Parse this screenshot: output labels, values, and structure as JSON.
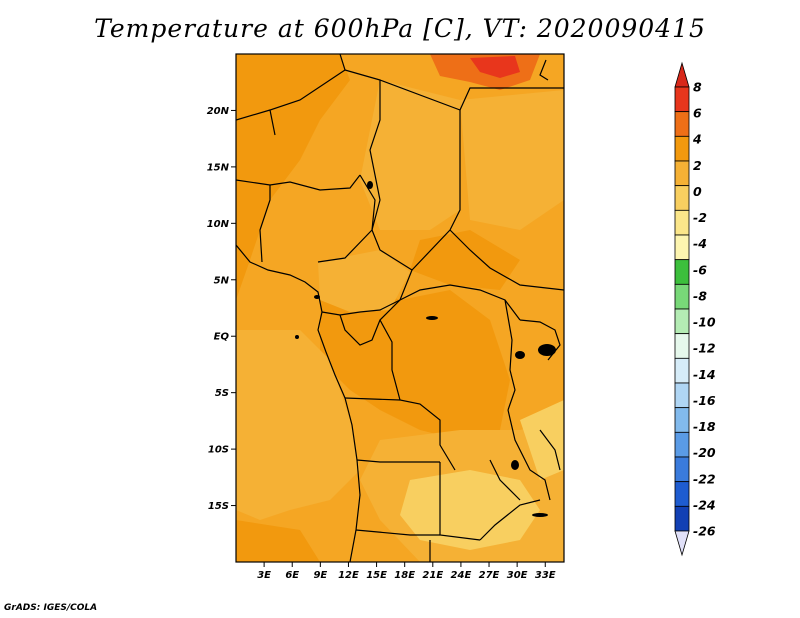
{
  "title": "Temperature at 600hPa [C], VT: 2020090415",
  "credit": "GrADS: IGES/COLA",
  "map": {
    "lon_range": [
      0,
      35
    ],
    "lat_range": [
      -20,
      25
    ],
    "lat_labels": [
      "20N",
      "15N",
      "10N",
      "5N",
      "EQ",
      "5S",
      "10S",
      "15S"
    ],
    "lat_values": [
      20,
      15,
      10,
      5,
      0,
      -5,
      -10,
      -15
    ],
    "lon_labels": [
      "3E",
      "6E",
      "9E",
      "12E",
      "15E",
      "18E",
      "21E",
      "24E",
      "27E",
      "30E",
      "33E"
    ],
    "lon_values": [
      3,
      6,
      9,
      12,
      15,
      18,
      21,
      24,
      27,
      30,
      33
    ],
    "dominant_field_color": "#f5a623"
  },
  "colorbar": {
    "labels": [
      "8",
      "6",
      "4",
      "2",
      "0",
      "-2",
      "-4",
      "-6",
      "-8",
      "-10",
      "-12",
      "-14",
      "-16",
      "-18",
      "-20",
      "-22",
      "-24",
      "-26"
    ],
    "colors": [
      "#e8361c",
      "#ee6f17",
      "#f2990e",
      "#f5b135",
      "#f8cf60",
      "#fbe68a",
      "#fdf5b0",
      "#3cbf3c",
      "#78d878",
      "#b4ecb4",
      "#e6f8ec",
      "#d6ecf8",
      "#b0d6f4",
      "#82baed",
      "#5a9be6",
      "#3a7bdc",
      "#1e5cd0",
      "#1240b4",
      "#0a1e8a"
    ],
    "over_color": "#d8281a",
    "under_color": "#e0e0f8"
  }
}
